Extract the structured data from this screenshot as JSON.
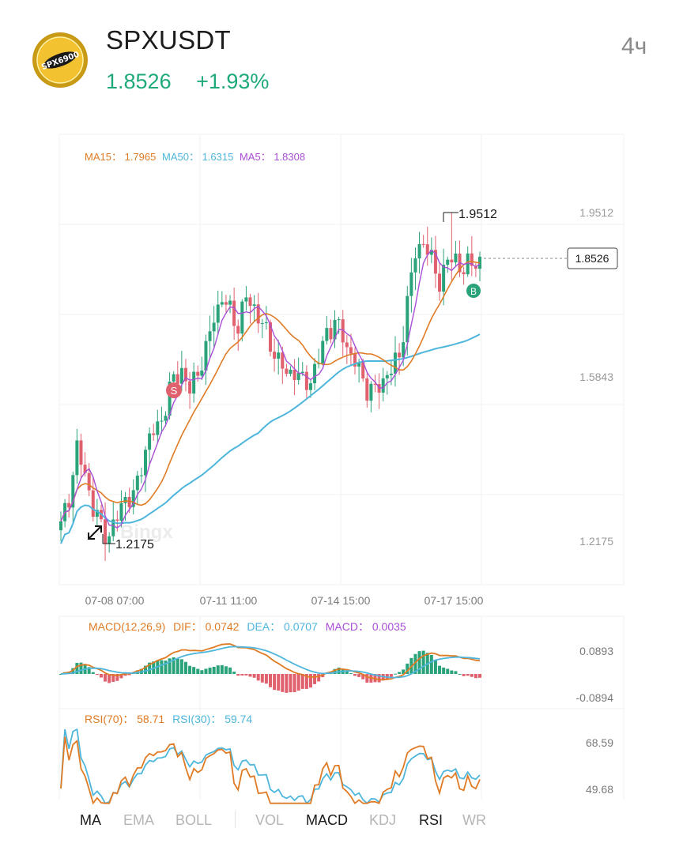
{
  "header": {
    "pair": "SPXUSDT",
    "price": "1.8526",
    "change": "+1.93%",
    "timeframe": "4ч",
    "logo_text": "SPX6900"
  },
  "colors": {
    "up": "#2ba37a",
    "down": "#e0606d",
    "ma15": "#e07b25",
    "ma50": "#4eb6dc",
    "ma5": "#a94fd6",
    "grid": "#f0f0f0"
  },
  "main": {
    "legend": {
      "ma15_label": "MA15：",
      "ma15_value": "1.7965",
      "ma50_label": "MA50：",
      "ma50_value": "1.6315",
      "ma5_label": "MA5：",
      "ma5_value": "1.8308"
    },
    "axis_labels": [
      "1.9512",
      "1.5843",
      "1.2175"
    ],
    "high_label": "1.9512",
    "low_label": "1.2175",
    "current_price_label": "1.8526",
    "sell_marker": "S",
    "buy_marker": "B",
    "watermark": "Bingx",
    "time_labels": [
      "07-08 07:00",
      "07-11 11:00",
      "07-14 15:00",
      "07-17 15:00"
    ]
  },
  "macd": {
    "legend": {
      "params": "MACD(12,26,9)",
      "dif_label": "DIF：",
      "dif_value": "0.0742",
      "dea_label": "DEA：",
      "dea_value": "0.0707",
      "macd_label": "MACD：",
      "macd_value": "0.0035"
    },
    "axis_labels": [
      "0.0893",
      "-0.0894"
    ]
  },
  "rsi": {
    "legend": {
      "rsi70_label": "RSI(70)：",
      "rsi70_value": "58.71",
      "rsi30_label": "RSI(30)：",
      "rsi30_value": "59.74"
    },
    "axis_labels": [
      "68.59",
      "49.68"
    ]
  },
  "tabs": {
    "ma": "MA",
    "ema": "EMA",
    "boll": "BOLL",
    "vol": "VOL",
    "macd": "MACD",
    "kdj": "KDJ",
    "rsi": "RSI",
    "wr": "WR"
  },
  "chart_data": [
    {
      "type": "candlestick",
      "title": "",
      "x_range": [
        "07-07 19:00",
        "07-17 15:00"
      ],
      "x_tick_labels": [
        "07-08 07:00",
        "07-11 11:00",
        "07-14 15:00",
        "07-17 15:00"
      ],
      "y_tick_labels": [
        1.2175,
        1.5843,
        1.9512
      ],
      "ylim": [
        1.09,
        2.05
      ],
      "grid": true,
      "period_hours": 4,
      "close_anchors": [
        [
          0,
          1.25
        ],
        [
          2,
          1.32
        ],
        [
          4,
          1.42
        ],
        [
          6,
          1.37
        ],
        [
          8,
          1.29
        ],
        [
          10,
          1.25
        ],
        [
          12,
          1.23
        ],
        [
          14,
          1.27
        ],
        [
          16,
          1.32
        ],
        [
          18,
          1.31
        ],
        [
          20,
          1.39
        ],
        [
          22,
          1.45
        ],
        [
          24,
          1.47
        ],
        [
          26,
          1.52
        ],
        [
          28,
          1.58
        ],
        [
          30,
          1.6
        ],
        [
          32,
          1.55
        ],
        [
          34,
          1.6
        ],
        [
          36,
          1.64
        ],
        [
          38,
          1.72
        ],
        [
          40,
          1.76
        ],
        [
          42,
          1.73
        ],
        [
          44,
          1.7
        ],
        [
          46,
          1.76
        ],
        [
          48,
          1.74
        ],
        [
          50,
          1.7
        ],
        [
          52,
          1.66
        ],
        [
          54,
          1.62
        ],
        [
          56,
          1.59
        ],
        [
          58,
          1.6
        ],
        [
          60,
          1.57
        ],
        [
          62,
          1.58
        ],
        [
          64,
          1.62
        ],
        [
          66,
          1.69
        ],
        [
          68,
          1.7
        ],
        [
          70,
          1.68
        ],
        [
          72,
          1.63
        ],
        [
          74,
          1.6
        ],
        [
          76,
          1.56
        ],
        [
          78,
          1.55
        ],
        [
          80,
          1.58
        ],
        [
          82,
          1.6
        ],
        [
          84,
          1.63
        ],
        [
          86,
          1.75
        ],
        [
          88,
          1.86
        ],
        [
          90,
          1.89
        ],
        [
          92,
          1.84
        ],
        [
          94,
          1.8
        ],
        [
          96,
          1.84
        ],
        [
          98,
          1.85
        ],
        [
          100,
          1.82
        ],
        [
          102,
          1.84
        ],
        [
          104,
          1.8526
        ]
      ],
      "high": 1.9512,
      "low": 1.2175,
      "last": 1.8526,
      "overlays": [
        {
          "name": "MA15",
          "value": 1.7965
        },
        {
          "name": "MA50",
          "value": 1.6315
        },
        {
          "name": "MA5",
          "value": 1.8308
        }
      ],
      "markers": [
        {
          "label": "S",
          "x_index": 35
        },
        {
          "label": "B",
          "x_index": 104
        }
      ]
    },
    {
      "type": "line",
      "title": "MACD(12,26,9)",
      "series": [
        {
          "name": "DIF",
          "last": 0.0742
        },
        {
          "name": "DEA",
          "last": 0.0707
        },
        {
          "name": "MACD",
          "last": 0.0035
        }
      ],
      "y_tick_labels": [
        0.0893,
        -0.0894
      ]
    },
    {
      "type": "line",
      "title": "RSI",
      "series": [
        {
          "name": "RSI(70)",
          "last": 58.71
        },
        {
          "name": "RSI(30)",
          "last": 59.74
        }
      ],
      "y_tick_labels": [
        68.59,
        49.68
      ]
    }
  ]
}
